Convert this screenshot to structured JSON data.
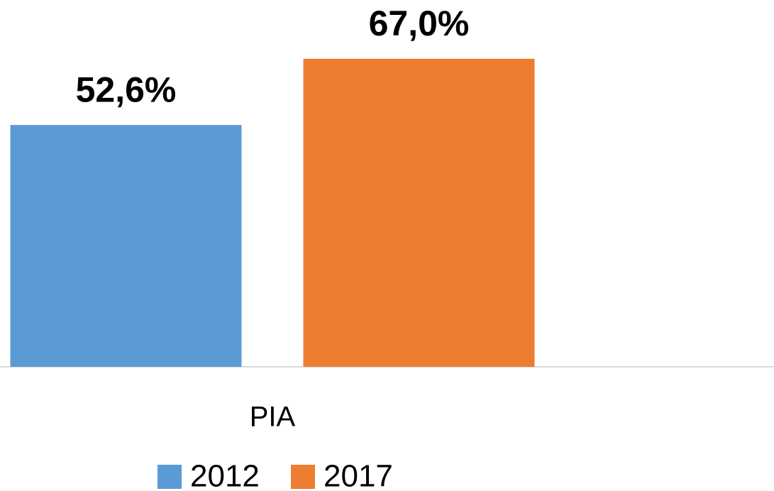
{
  "chart_data": {
    "type": "bar",
    "categories": [
      "PIA"
    ],
    "series": [
      {
        "name": "2012",
        "color": "#5b9bd5",
        "values": [
          52.6
        ],
        "value_labels": [
          "52,6%"
        ]
      },
      {
        "name": "2017",
        "color": "#ed7d31",
        "values": [
          67.0
        ],
        "value_labels": [
          "67,0%"
        ]
      }
    ],
    "legend": "bottom"
  }
}
